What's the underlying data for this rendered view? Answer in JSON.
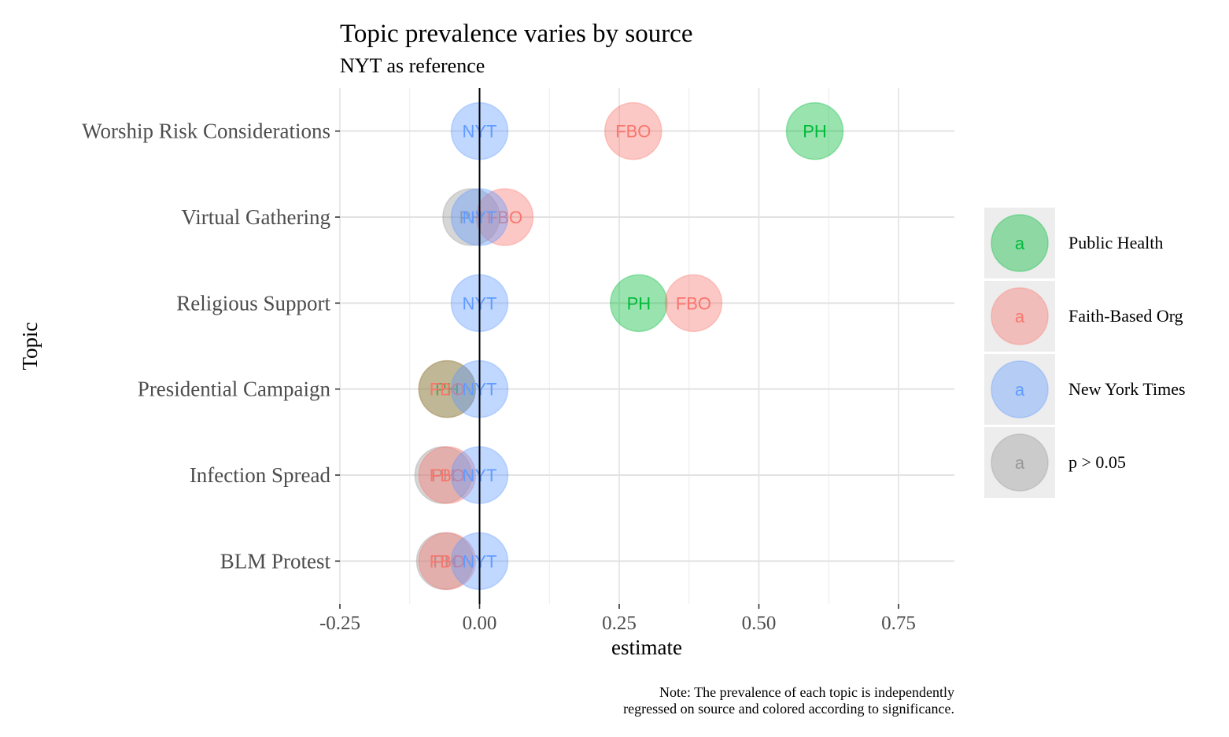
{
  "chart_data": {
    "type": "scatter",
    "title": "Topic prevalence varies by source",
    "subtitle": "NYT as reference",
    "xlabel": "estimate",
    "ylabel": "Topic",
    "xlim": [
      -0.25,
      0.85
    ],
    "x_ticks": [
      "-0.25",
      "0.00",
      "0.25",
      "0.50",
      "0.75"
    ],
    "x_tick_values": [
      -0.25,
      0,
      0.25,
      0.5,
      0.75
    ],
    "reference_line_x": 0,
    "grid": true,
    "legend_position": "right",
    "caption": [
      "Note: The prevalence of each topic is independently",
      "regressed on source and colored according to significance."
    ],
    "categories": [
      "Worship Risk Considerations",
      "Virtual Gathering",
      "Religious Support",
      "Presidential Campaign",
      "Infection Spread",
      "BLM Protest"
    ],
    "legend": [
      {
        "key": "a",
        "label": "Public Health",
        "color": "#00BA38"
      },
      {
        "key": "a",
        "label": "Faith-Based Org",
        "color": "#F8766D"
      },
      {
        "key": "a",
        "label": "New York Times",
        "color": "#619CFF"
      },
      {
        "key": "a",
        "label": "p > 0.05",
        "color": "#999999"
      }
    ],
    "colors": {
      "Public Health": "#00BA38",
      "Faith-Based Org": "#F8766D",
      "New York Times": "#619CFF",
      "p > 0.05": "#999999"
    },
    "points": [
      {
        "topic": "Worship Risk Considerations",
        "label": "NYT",
        "x": 0.0,
        "group": "New York Times"
      },
      {
        "topic": "Worship Risk Considerations",
        "label": "FBO",
        "x": 0.275,
        "group": "Faith-Based Org"
      },
      {
        "topic": "Worship Risk Considerations",
        "label": "PH",
        "x": 0.6,
        "group": "Public Health"
      },
      {
        "topic": "Virtual Gathering",
        "label": "PH",
        "x": -0.015,
        "group": "p > 0.05"
      },
      {
        "topic": "Virtual Gathering",
        "label": "FBO",
        "x": 0.045,
        "group": "Faith-Based Org"
      },
      {
        "topic": "Virtual Gathering",
        "label": "NYT",
        "x": 0.0,
        "group": "New York Times"
      },
      {
        "topic": "Religious Support",
        "label": "NYT",
        "x": 0.0,
        "group": "New York Times"
      },
      {
        "topic": "Religious Support",
        "label": "PH",
        "x": 0.285,
        "group": "Public Health"
      },
      {
        "topic": "Religious Support",
        "label": "FBO",
        "x": 0.383,
        "group": "Faith-Based Org"
      },
      {
        "topic": "Presidential Campaign",
        "label": "PH",
        "x": -0.058,
        "group": "Public Health"
      },
      {
        "topic": "Presidential Campaign",
        "label": "FBO",
        "x": -0.058,
        "group": "Faith-Based Org"
      },
      {
        "topic": "Presidential Campaign",
        "label": "NYT",
        "x": 0.0,
        "group": "New York Times"
      },
      {
        "topic": "Infection Spread",
        "label": "PH",
        "x": -0.065,
        "group": "p > 0.05"
      },
      {
        "topic": "Infection Spread",
        "label": "FBO",
        "x": -0.058,
        "group": "Faith-Based Org"
      },
      {
        "topic": "Infection Spread",
        "label": "NYT",
        "x": 0.0,
        "group": "New York Times"
      },
      {
        "topic": "BLM Protest",
        "label": "PH",
        "x": -0.062,
        "group": "p > 0.05"
      },
      {
        "topic": "BLM Protest",
        "label": "FBO",
        "x": -0.058,
        "group": "Faith-Based Org"
      },
      {
        "topic": "BLM Protest",
        "label": "NYT",
        "x": 0.0,
        "group": "New York Times"
      }
    ]
  }
}
